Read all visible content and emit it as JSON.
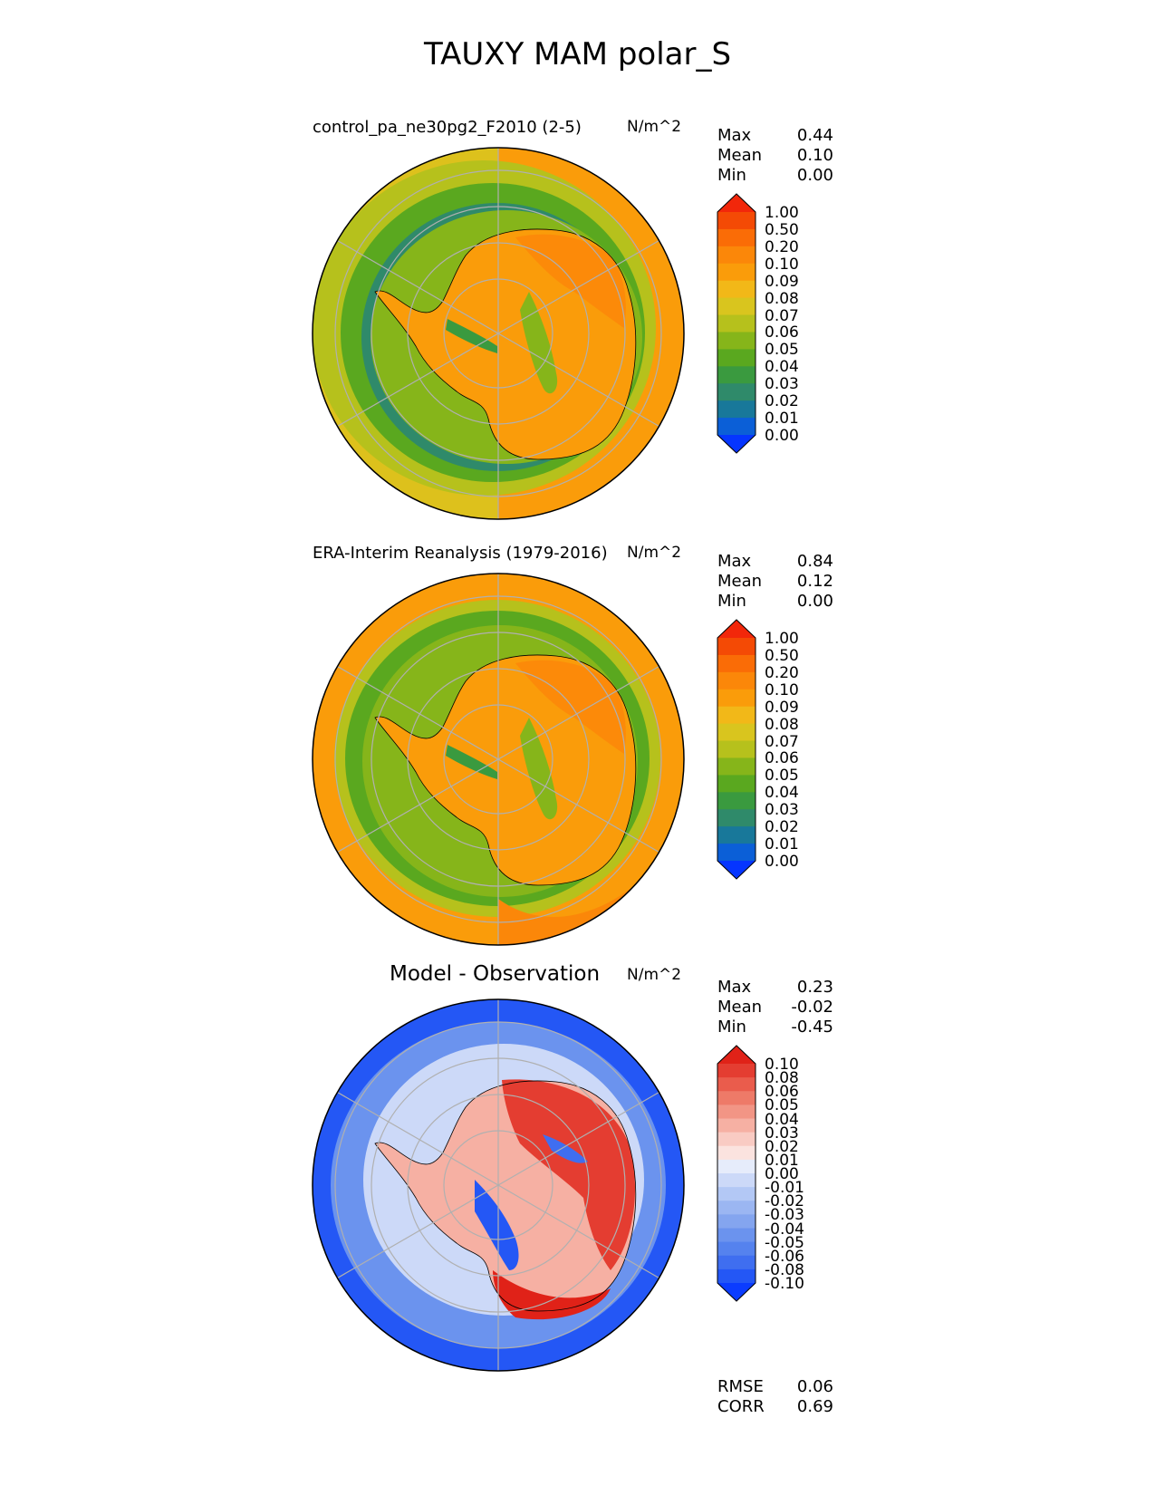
{
  "figure_title": "TAUXY MAM polar_S",
  "panels": [
    {
      "title": "control_pa_ne30pg2_F2010 (2-5)",
      "units": "N/m^2",
      "stats": [
        {
          "label": "Max",
          "value": "0.44"
        },
        {
          "label": "Mean",
          "value": "0.10"
        },
        {
          "label": "Min",
          "value": "0.00"
        }
      ],
      "colorbar_labels": [
        "1.00",
        "0.50",
        "0.20",
        "0.10",
        "0.09",
        "0.08",
        "0.07",
        "0.06",
        "0.05",
        "0.04",
        "0.03",
        "0.02",
        "0.01",
        "0.00"
      ]
    },
    {
      "title": "ERA-Interim Reanalysis (1979-2016)",
      "units": "N/m^2",
      "stats": [
        {
          "label": "Max",
          "value": "0.84"
        },
        {
          "label": "Mean",
          "value": "0.12"
        },
        {
          "label": "Min",
          "value": "0.00"
        }
      ],
      "colorbar_labels": [
        "1.00",
        "0.50",
        "0.20",
        "0.10",
        "0.09",
        "0.08",
        "0.07",
        "0.06",
        "0.05",
        "0.04",
        "0.03",
        "0.02",
        "0.01",
        "0.00"
      ]
    },
    {
      "title": "Model - Observation",
      "units": "N/m^2",
      "stats": [
        {
          "label": "Max",
          "value": "0.23"
        },
        {
          "label": "Mean",
          "value": "-0.02"
        },
        {
          "label": "Min",
          "value": "-0.45"
        }
      ],
      "colorbar_labels": [
        "0.10",
        "0.08",
        "0.06",
        "0.05",
        "0.04",
        "0.03",
        "0.02",
        "0.01",
        "0.00",
        "-0.01",
        "-0.02",
        "-0.03",
        "-0.04",
        "-0.05",
        "-0.06",
        "-0.08",
        "-0.10"
      ]
    }
  ],
  "diff_metrics": [
    {
      "label": "RMSE",
      "value": "0.06"
    },
    {
      "label": "CORR",
      "value": "0.69"
    }
  ],
  "colors": {
    "abs_scale": [
      "#0535ff",
      "#0b5fd7",
      "#18789a",
      "#2f8a6a",
      "#3a9a3f",
      "#5aa81f",
      "#86b51a",
      "#b6c11c",
      "#d9c51e",
      "#f2b818",
      "#fa9c0a",
      "#fb8709",
      "#fa6c06",
      "#f44a05",
      "#f2270a"
    ],
    "diff_scale": [
      "#0b3cff",
      "#2457f5",
      "#3f6ef0",
      "#5582ee",
      "#6b93ee",
      "#84a5ef",
      "#9bb6f2",
      "#b3c8f5",
      "#ccd9f8",
      "#e6ecfb",
      "#fbe3df",
      "#f9cbc3",
      "#f6b0a3",
      "#f29585",
      "#ee7a68",
      "#ea5c4c",
      "#e43d31",
      "#e02218"
    ]
  }
}
